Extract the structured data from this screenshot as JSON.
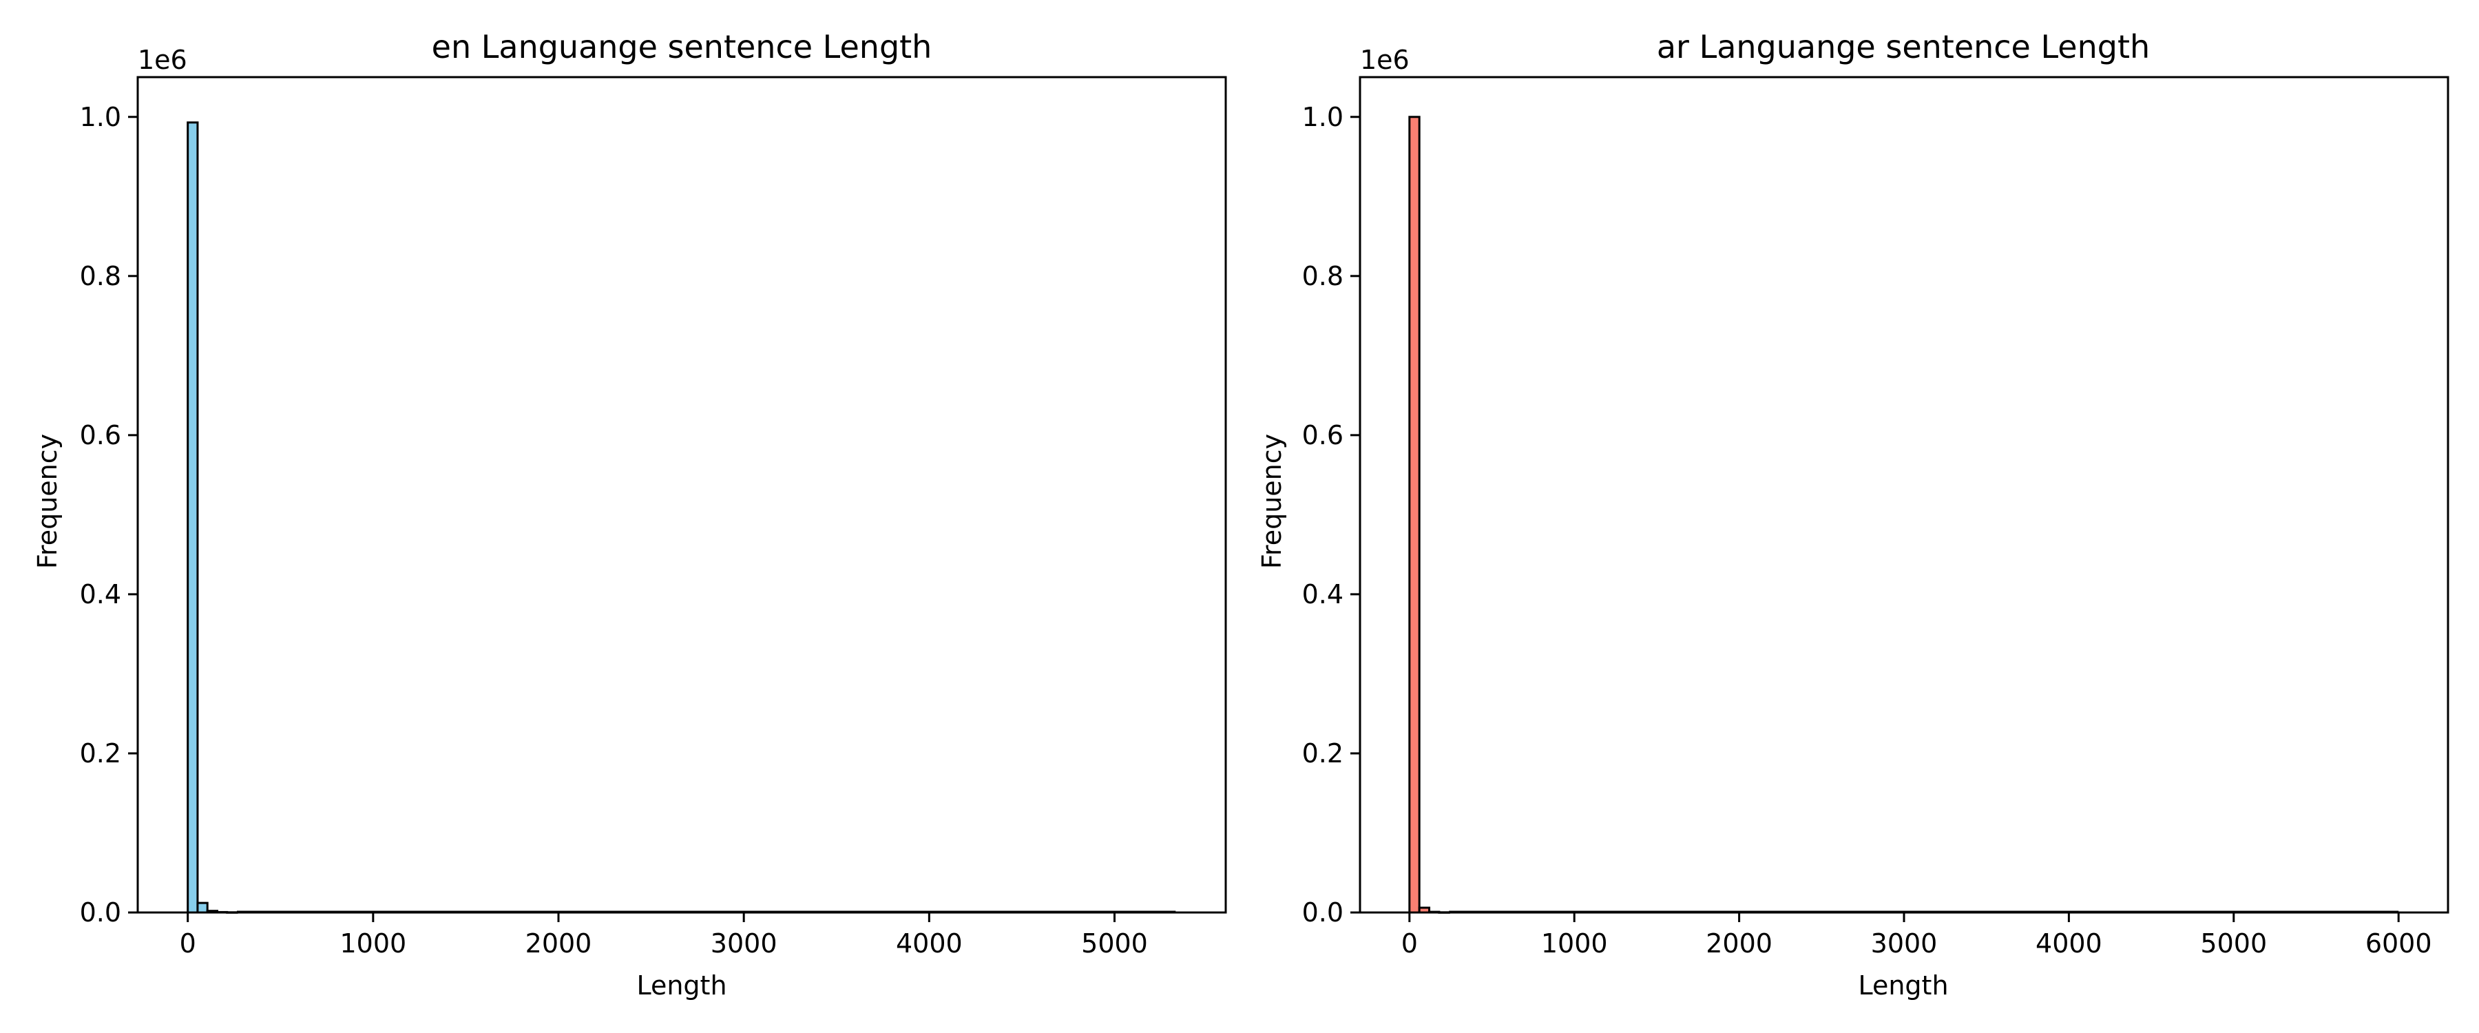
{
  "chart_data": [
    {
      "type": "bar",
      "title": "en Languange sentence Length",
      "xlabel": "Length",
      "ylabel": "Frequency",
      "y_offset_text": "1e6",
      "xlim": [
        -270,
        5600
      ],
      "ylim": [
        0,
        1.05
      ],
      "xticks": [
        0,
        1000,
        2000,
        3000,
        4000,
        5000
      ],
      "yticks": [
        0.0,
        0.2,
        0.4,
        0.6,
        0.8,
        1.0
      ],
      "grid": false,
      "bar_color": "#87ceeb",
      "edge_color": "#000000",
      "bin_width": 53,
      "bins": [
        {
          "start": 0,
          "value": 0.993
        },
        {
          "start": 53,
          "value": 0.012
        },
        {
          "start": 106,
          "value": 0.002
        },
        {
          "start": 159,
          "value": 0.0005
        },
        {
          "start": 212,
          "value": 0.0002
        }
      ],
      "x_max": 5330
    },
    {
      "type": "bar",
      "title": "ar Languange sentence Length",
      "xlabel": "Length",
      "ylabel": "Frequency",
      "y_offset_text": "1e6",
      "xlim": [
        -300,
        6300
      ],
      "ylim": [
        0,
        1.05
      ],
      "xticks": [
        0,
        1000,
        2000,
        3000,
        4000,
        5000,
        6000
      ],
      "yticks": [
        0.0,
        0.2,
        0.4,
        0.6,
        0.8,
        1.0
      ],
      "grid": false,
      "bar_color": "#fa8072",
      "edge_color": "#000000",
      "bin_width": 60,
      "bins": [
        {
          "start": 0,
          "value": 1.0
        },
        {
          "start": 60,
          "value": 0.006
        },
        {
          "start": 120,
          "value": 0.0008
        },
        {
          "start": 180,
          "value": 0.0002
        }
      ],
      "x_max": 6000
    }
  ]
}
